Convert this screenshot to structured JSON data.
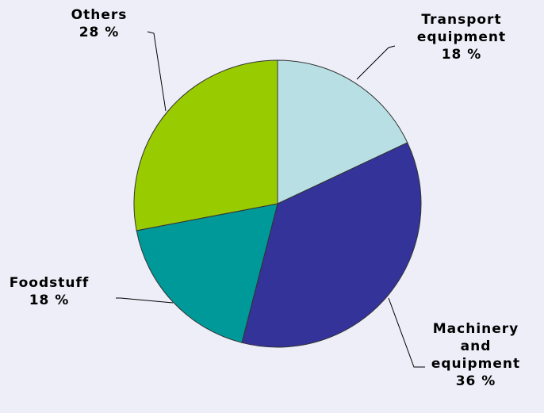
{
  "chart_data": {
    "type": "pie",
    "categories": [
      "Transport equipment",
      "Machinery and equipment",
      "Foodstuff",
      "Others"
    ],
    "values": [
      18,
      36,
      18,
      28
    ],
    "value_labels": [
      "18 %",
      "36 %",
      "18 %",
      "28 %"
    ],
    "colors": [
      "#b8e0e4",
      "#333399",
      "#009999",
      "#99cc00"
    ]
  }
}
